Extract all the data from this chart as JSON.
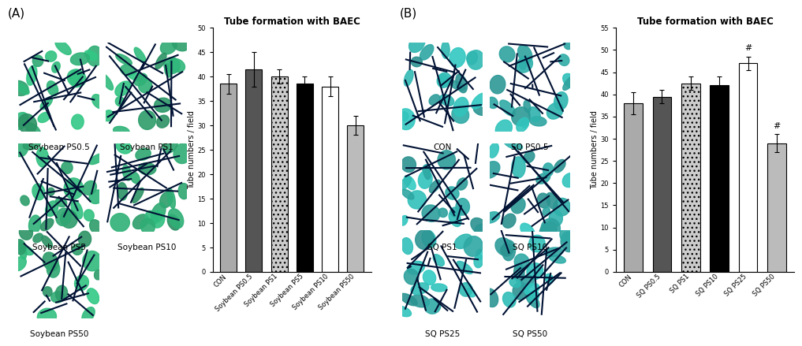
{
  "chart_a": {
    "title": "Tube formation with BAEC",
    "categories": [
      "CON",
      "Soybean PS0.5",
      "Soybean PS1",
      "Soybean PS5",
      "Soybean PS10",
      "Soybean PS50"
    ],
    "values": [
      38.5,
      41.5,
      40.0,
      38.5,
      38.0,
      30.0
    ],
    "errors": [
      2.0,
      3.5,
      1.5,
      1.5,
      2.0,
      2.0
    ],
    "colors": [
      "#aaaaaa",
      "#555555",
      "#cccccc",
      "#000000",
      "#ffffff",
      "#bbbbbb"
    ],
    "hatches": [
      "",
      "",
      "...",
      "",
      "",
      ""
    ],
    "ylabel": "Tube numbers / field",
    "ylim": [
      0,
      50
    ],
    "yticks": [
      0,
      5,
      10,
      15,
      20,
      25,
      30,
      35,
      40,
      45,
      50
    ],
    "significance": [
      "",
      "",
      "",
      "",
      "",
      ""
    ]
  },
  "chart_b": {
    "title": "Tube formation with BAEC",
    "categories": [
      "CON",
      "SQ PS0.5",
      "SQ PS1",
      "SQ PS10",
      "SQ PS25",
      "SQ PS50"
    ],
    "values": [
      38.0,
      39.5,
      42.5,
      42.0,
      47.0,
      29.0
    ],
    "errors": [
      2.5,
      1.5,
      1.5,
      2.0,
      1.5,
      2.0
    ],
    "colors": [
      "#aaaaaa",
      "#555555",
      "#cccccc",
      "#000000",
      "#ffffff",
      "#bbbbbb"
    ],
    "hatches": [
      "",
      "",
      "...",
      "",
      "",
      ""
    ],
    "ylabel": "Tube numbers / field",
    "ylim": [
      0,
      55
    ],
    "yticks": [
      0,
      5,
      10,
      15,
      20,
      25,
      30,
      35,
      40,
      45,
      50,
      55
    ],
    "significance": [
      "",
      "",
      "",
      "",
      "#",
      "#"
    ]
  },
  "panel_a_images": [
    "Soybean PS0.5",
    "Soybean PS1",
    "Soybean PS5",
    "Soybean PS10",
    "Soybean PS50"
  ],
  "panel_b_images": [
    "CON",
    "SQ PS0.5",
    "SQ PS1",
    "SQ PS10",
    "SQ PS25",
    "SQ PS50"
  ],
  "panel_a_label": "(A)",
  "panel_b_label": "(B)",
  "title_fontsize": 8.5,
  "axis_fontsize": 7,
  "tick_fontsize": 6,
  "label_fontsize": 7.5
}
